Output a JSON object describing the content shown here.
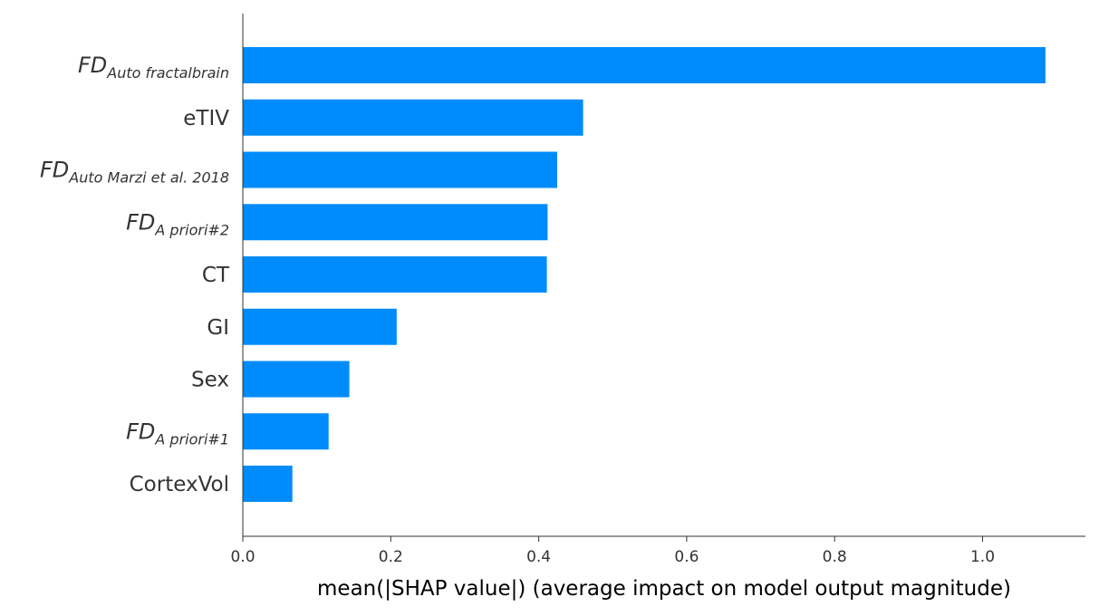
{
  "chart_data": {
    "type": "bar",
    "orientation": "horizontal",
    "categories": [
      {
        "main": "FD",
        "sub": "Auto fractalbrain"
      },
      {
        "main": "eTIV",
        "sub": ""
      },
      {
        "main": "FD",
        "sub": "Auto Marzi et al. 2018"
      },
      {
        "main": "FD",
        "sub": "A priori#2"
      },
      {
        "main": "CT",
        "sub": ""
      },
      {
        "main": "GI",
        "sub": ""
      },
      {
        "main": "Sex",
        "sub": ""
      },
      {
        "main": "FD",
        "sub": "A priori#1"
      },
      {
        "main": "CortexVol",
        "sub": ""
      }
    ],
    "values": [
      1.085,
      0.46,
      0.425,
      0.412,
      0.411,
      0.208,
      0.144,
      0.116,
      0.067
    ],
    "xlabel": "mean(|SHAP value|) (average impact on model output magnitude)",
    "ylabel": "",
    "title": "",
    "xlim": [
      0,
      1.14
    ],
    "xticks": [
      "0.0",
      "0.2",
      "0.4",
      "0.6",
      "0.8",
      "1.0"
    ],
    "bar_color": "#008bfb",
    "grid": false
  }
}
